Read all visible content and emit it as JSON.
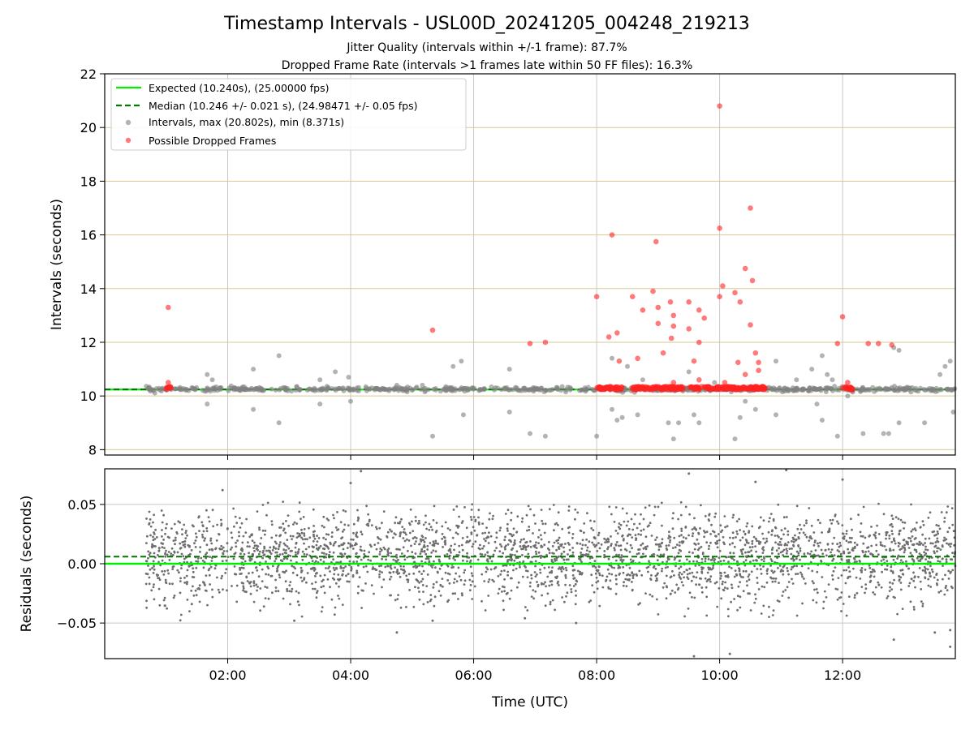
{
  "figure": {
    "title": "Timestamp Intervals - USL00D_20241205_004248_219213",
    "subtitle_1": "Jitter Quality (intervals within +/-1 frame): 87.7%",
    "subtitle_2": "Dropped Frame Rate (intervals >1 frames late within 50 FF files): 16.3%"
  },
  "colors": {
    "expected": "#00ee00",
    "median": "#007700",
    "intervals": "#808080",
    "dropped": "#ff2222",
    "top_grid": "#d8c890",
    "grid": "#c8c8c8"
  },
  "chart_data": [
    {
      "type": "scatter",
      "panel": "intervals",
      "ylabel": "Intervals (seconds)",
      "xlim": [
        "00:00",
        "13:50"
      ],
      "ylim": [
        7.8,
        22
      ],
      "yticks": [
        "8",
        "10",
        "12",
        "14",
        "16",
        "18",
        "20",
        "22"
      ],
      "grid": true,
      "legend_position": "top-left",
      "legend": [
        "Expected (10.240s), (25.00000 fps)",
        "Median (10.246 +/- 0.021 s), (24.98471 +/- 0.05 fps)",
        "Intervals, max (20.802s), min (8.371s)",
        "Possible Dropped Frames"
      ],
      "expected_value": 10.24,
      "median_value": 10.246,
      "series": [
        {
          "name": "Intervals, max (20.802s), min (8.371s)",
          "baseline": 10.25,
          "x_range": [
            "00:40",
            "13:50"
          ],
          "outliers": [
            {
              "x": "01:40",
              "y": 10.8
            },
            {
              "x": "01:40",
              "y": 9.7
            },
            {
              "x": "01:45",
              "y": 10.6
            },
            {
              "x": "02:25",
              "y": 11.0
            },
            {
              "x": "02:25",
              "y": 9.5
            },
            {
              "x": "02:50",
              "y": 11.5
            },
            {
              "x": "02:50",
              "y": 9.0
            },
            {
              "x": "03:30",
              "y": 10.6
            },
            {
              "x": "03:30",
              "y": 9.7
            },
            {
              "x": "03:45",
              "y": 10.9
            },
            {
              "x": "03:58",
              "y": 10.7
            },
            {
              "x": "04:00",
              "y": 9.8
            },
            {
              "x": "04:45",
              "y": 10.4
            },
            {
              "x": "05:10",
              "y": 10.4
            },
            {
              "x": "05:20",
              "y": 8.5
            },
            {
              "x": "05:40",
              "y": 11.1
            },
            {
              "x": "05:48",
              "y": 11.3
            },
            {
              "x": "05:50",
              "y": 9.3
            },
            {
              "x": "06:35",
              "y": 11.0
            },
            {
              "x": "06:35",
              "y": 9.4
            },
            {
              "x": "06:55",
              "y": 8.6
            },
            {
              "x": "07:10",
              "y": 8.5
            },
            {
              "x": "08:00",
              "y": 8.5
            },
            {
              "x": "08:15",
              "y": 11.4
            },
            {
              "x": "08:15",
              "y": 9.5
            },
            {
              "x": "08:20",
              "y": 9.1
            },
            {
              "x": "08:25",
              "y": 9.2
            },
            {
              "x": "08:30",
              "y": 11.1
            },
            {
              "x": "08:40",
              "y": 9.3
            },
            {
              "x": "08:45",
              "y": 10.6
            },
            {
              "x": "09:10",
              "y": 9.0
            },
            {
              "x": "09:15",
              "y": 8.4
            },
            {
              "x": "09:20",
              "y": 9.0
            },
            {
              "x": "09:30",
              "y": 10.9
            },
            {
              "x": "09:35",
              "y": 9.3
            },
            {
              "x": "09:40",
              "y": 9.0
            },
            {
              "x": "09:55",
              "y": 10.5
            },
            {
              "x": "10:15",
              "y": 8.4
            },
            {
              "x": "10:20",
              "y": 9.2
            },
            {
              "x": "10:25",
              "y": 9.8
            },
            {
              "x": "10:35",
              "y": 9.5
            },
            {
              "x": "10:55",
              "y": 11.3
            },
            {
              "x": "10:55",
              "y": 9.3
            },
            {
              "x": "11:15",
              "y": 10.6
            },
            {
              "x": "11:30",
              "y": 11.0
            },
            {
              "x": "11:35",
              "y": 9.7
            },
            {
              "x": "11:40",
              "y": 11.5
            },
            {
              "x": "11:40",
              "y": 9.1
            },
            {
              "x": "11:45",
              "y": 10.8
            },
            {
              "x": "11:50",
              "y": 10.6
            },
            {
              "x": "11:55",
              "y": 8.5
            },
            {
              "x": "12:05",
              "y": 10.0
            },
            {
              "x": "12:20",
              "y": 8.6
            },
            {
              "x": "12:40",
              "y": 8.6
            },
            {
              "x": "12:45",
              "y": 8.6
            },
            {
              "x": "12:50",
              "y": 11.8
            },
            {
              "x": "12:55",
              "y": 9.0
            },
            {
              "x": "12:55",
              "y": 11.7
            },
            {
              "x": "13:20",
              "y": 9.0
            },
            {
              "x": "13:35",
              "y": 10.8
            },
            {
              "x": "13:40",
              "y": 11.1
            },
            {
              "x": "13:45",
              "y": 11.3
            },
            {
              "x": "13:48",
              "y": 9.4
            }
          ]
        },
        {
          "name": "Possible Dropped Frames",
          "baseline": 10.28,
          "clusters": [
            {
              "from": "01:00",
              "to": "01:05"
            },
            {
              "from": "08:00",
              "to": "08:25"
            },
            {
              "from": "08:35",
              "to": "09:25"
            },
            {
              "from": "09:30",
              "to": "10:45"
            },
            {
              "from": "12:00",
              "to": "12:10"
            }
          ],
          "outliers": [
            {
              "x": "01:02",
              "y": 13.3
            },
            {
              "x": "01:02",
              "y": 10.5
            },
            {
              "x": "05:20",
              "y": 12.45
            },
            {
              "x": "06:55",
              "y": 11.95
            },
            {
              "x": "07:10",
              "y": 12.0
            },
            {
              "x": "08:00",
              "y": 13.7
            },
            {
              "x": "08:12",
              "y": 12.2
            },
            {
              "x": "08:15",
              "y": 16.0
            },
            {
              "x": "08:20",
              "y": 12.35
            },
            {
              "x": "08:22",
              "y": 11.3
            },
            {
              "x": "08:35",
              "y": 13.7
            },
            {
              "x": "08:40",
              "y": 11.4
            },
            {
              "x": "08:45",
              "y": 13.2
            },
            {
              "x": "08:55",
              "y": 13.9
            },
            {
              "x": "08:58",
              "y": 15.75
            },
            {
              "x": "09:00",
              "y": 13.3
            },
            {
              "x": "09:00",
              "y": 12.7
            },
            {
              "x": "09:05",
              "y": 11.6
            },
            {
              "x": "09:12",
              "y": 13.5
            },
            {
              "x": "09:13",
              "y": 12.15
            },
            {
              "x": "09:15",
              "y": 13.0
            },
            {
              "x": "09:15",
              "y": 12.6
            },
            {
              "x": "09:15",
              "y": 10.5
            },
            {
              "x": "09:30",
              "y": 13.5
            },
            {
              "x": "09:30",
              "y": 12.5
            },
            {
              "x": "09:35",
              "y": 11.3
            },
            {
              "x": "09:40",
              "y": 13.2
            },
            {
              "x": "09:40",
              "y": 12.0
            },
            {
              "x": "09:40",
              "y": 10.6
            },
            {
              "x": "09:45",
              "y": 12.9
            },
            {
              "x": "10:00",
              "y": 20.8
            },
            {
              "x": "10:00",
              "y": 16.25
            },
            {
              "x": "10:00",
              "y": 13.7
            },
            {
              "x": "10:03",
              "y": 14.1
            },
            {
              "x": "10:05",
              "y": 10.5
            },
            {
              "x": "10:10",
              "y": 10.3
            },
            {
              "x": "10:15",
              "y": 13.85
            },
            {
              "x": "10:18",
              "y": 11.25
            },
            {
              "x": "10:20",
              "y": 13.5
            },
            {
              "x": "10:25",
              "y": 14.75
            },
            {
              "x": "10:25",
              "y": 10.8
            },
            {
              "x": "10:30",
              "y": 17.0
            },
            {
              "x": "10:30",
              "y": 12.65
            },
            {
              "x": "10:32",
              "y": 14.3
            },
            {
              "x": "10:35",
              "y": 11.6
            },
            {
              "x": "10:38",
              "y": 11.25
            },
            {
              "x": "10:38",
              "y": 10.95
            },
            {
              "x": "11:55",
              "y": 11.95
            },
            {
              "x": "12:00",
              "y": 12.95
            },
            {
              "x": "12:05",
              "y": 10.5
            },
            {
              "x": "12:25",
              "y": 11.95
            },
            {
              "x": "12:35",
              "y": 11.95
            },
            {
              "x": "12:48",
              "y": 11.9
            }
          ]
        }
      ]
    },
    {
      "type": "scatter",
      "panel": "residuals",
      "xlabel": "Time (UTC)",
      "ylabel": "Residuals (seconds)",
      "xlim": [
        "00:00",
        "13:50"
      ],
      "ylim": [
        -0.08,
        0.08
      ],
      "xticks": [
        "02:00",
        "04:00",
        "06:00",
        "08:00",
        "10:00",
        "12:00"
      ],
      "yticks": [
        "0.05",
        "0.00",
        "−0.05"
      ],
      "grid": true,
      "expected_value": 0.0,
      "median_value": 0.006,
      "series": [
        {
          "name": "Residuals",
          "x_range": [
            "00:40",
            "13:50"
          ],
          "spread_range": [
            -0.04,
            0.045
          ],
          "outliers": [
            {
              "x": "01:25",
              "y": -0.034
            },
            {
              "x": "01:55",
              "y": 0.062
            },
            {
              "x": "03:05",
              "y": -0.048
            },
            {
              "x": "04:00",
              "y": 0.068
            },
            {
              "x": "04:10",
              "y": 0.078
            },
            {
              "x": "04:45",
              "y": -0.058
            },
            {
              "x": "05:20",
              "y": -0.048
            },
            {
              "x": "06:50",
              "y": -0.046
            },
            {
              "x": "07:40",
              "y": -0.05
            },
            {
              "x": "09:30",
              "y": 0.076
            },
            {
              "x": "09:35",
              "y": -0.078
            },
            {
              "x": "10:10",
              "y": -0.076
            },
            {
              "x": "10:35",
              "y": 0.069
            },
            {
              "x": "11:05",
              "y": 0.079
            },
            {
              "x": "12:00",
              "y": 0.071
            },
            {
              "x": "12:50",
              "y": -0.064
            },
            {
              "x": "13:30",
              "y": -0.058
            },
            {
              "x": "13:45",
              "y": -0.07
            },
            {
              "x": "13:45",
              "y": -0.056
            }
          ]
        }
      ]
    }
  ]
}
